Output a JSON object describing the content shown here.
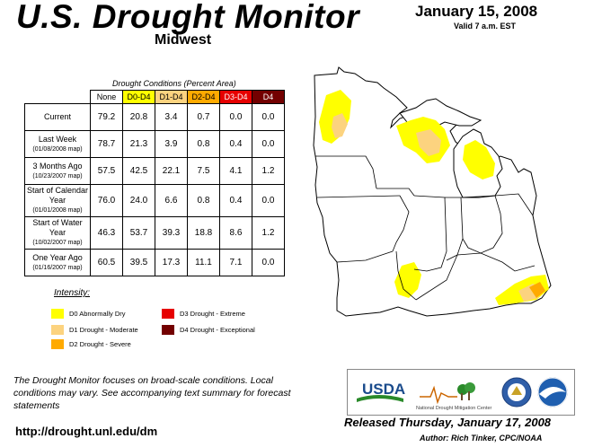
{
  "header": {
    "title": "U.S. Drought Monitor",
    "region": "Midwest",
    "date": "January 15, 2008",
    "valid": "Valid 7 a.m. EST"
  },
  "table": {
    "caption": "Drought Conditions (Percent Area)",
    "columns": [
      {
        "label": "None",
        "color": "#ffffff"
      },
      {
        "label": "D0-D4",
        "color": "#ffff00"
      },
      {
        "label": "D1-D4",
        "color": "#fcd37f"
      },
      {
        "label": "D2-D4",
        "color": "#ffaa00"
      },
      {
        "label": "D3-D4",
        "color": "#e60000"
      },
      {
        "label": "D4",
        "color": "#730000"
      }
    ],
    "rows": [
      {
        "label": "Current",
        "sub": "",
        "values": [
          "79.2",
          "20.8",
          "3.4",
          "0.7",
          "0.0",
          "0.0"
        ]
      },
      {
        "label": "Last Week",
        "sub": "(01/08/2008 map)",
        "values": [
          "78.7",
          "21.3",
          "3.9",
          "0.8",
          "0.4",
          "0.0"
        ]
      },
      {
        "label": "3 Months Ago",
        "sub": "(10/23/2007 map)",
        "values": [
          "57.5",
          "42.5",
          "22.1",
          "7.5",
          "4.1",
          "1.2"
        ]
      },
      {
        "label": "Start of Calendar Year",
        "sub": "(01/01/2008 map)",
        "values": [
          "76.0",
          "24.0",
          "6.6",
          "0.8",
          "0.4",
          "0.0"
        ]
      },
      {
        "label": "Start of Water Year",
        "sub": "(10/02/2007 map)",
        "values": [
          "46.3",
          "53.7",
          "39.3",
          "18.8",
          "8.6",
          "1.2"
        ]
      },
      {
        "label": "One Year Ago",
        "sub": "(01/16/2007 map)",
        "values": [
          "60.5",
          "39.5",
          "17.3",
          "11.1",
          "7.1",
          "0.0"
        ]
      }
    ]
  },
  "legend": {
    "heading": "Intensity:",
    "items": [
      {
        "label": "D0 Abnormally Dry",
        "color": "#ffff00"
      },
      {
        "label": "D1 Drought - Moderate",
        "color": "#fcd37f"
      },
      {
        "label": "D2 Drought - Severe",
        "color": "#ffaa00"
      },
      {
        "label": "D3 Drought - Extreme",
        "color": "#e60000"
      },
      {
        "label": "D4 Drought - Exceptional",
        "color": "#730000"
      }
    ]
  },
  "footer": {
    "note": "The Drought Monitor focuses on broad-scale conditions. Local conditions may vary. See accompanying text summary for forecast statements",
    "url": "http://drought.unl.edu/dm",
    "released": "Released Thursday, January 17, 2008",
    "author": "Author: Rich Tinker, CPC/NOAA"
  },
  "logos": {
    "usda": "USDA",
    "ndmc": "National Drought Mitigation Center"
  },
  "map": {
    "states": [
      "Minnesota",
      "Wisconsin",
      "Michigan",
      "Iowa",
      "Illinois",
      "Indiana",
      "Ohio",
      "Missouri",
      "Kentucky"
    ],
    "colors": {
      "d0": "#ffff00",
      "d1": "#fcd37f",
      "d2": "#ffaa00",
      "outline": "#000000"
    }
  }
}
